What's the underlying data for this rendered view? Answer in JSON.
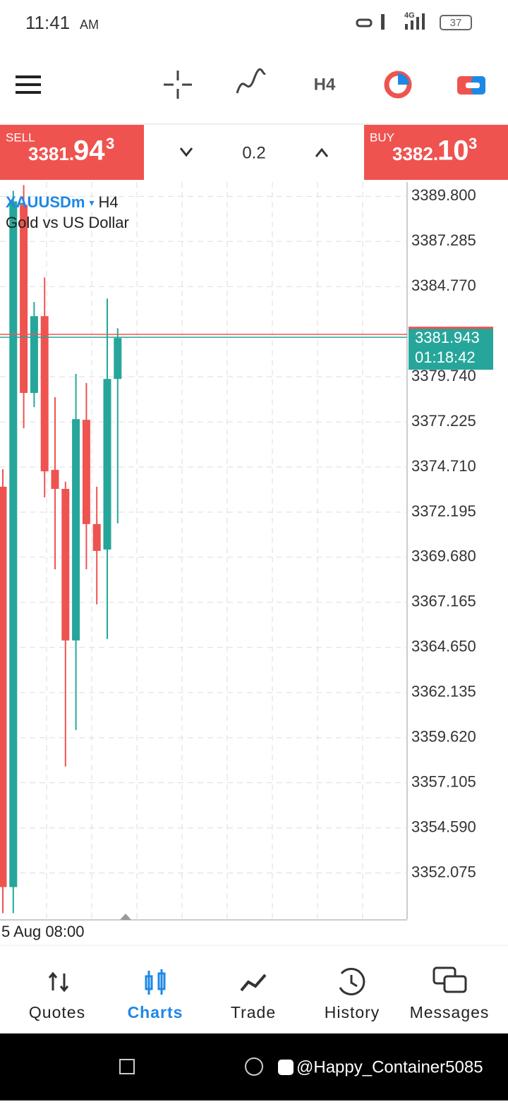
{
  "status_bar": {
    "time": "11:41",
    "ampm": "AM",
    "network": "4G",
    "battery": "37"
  },
  "toolbar": {
    "timeframe": "H4"
  },
  "trade_panel": {
    "sell_label": "SELL",
    "sell_price_main": "3381.",
    "sell_price_big": "94",
    "sell_price_sup": "3",
    "lot": "0.2",
    "buy_label": "BUY",
    "buy_price_main": "3382.",
    "buy_price_big": "10",
    "buy_price_sup": "3"
  },
  "chart_data": {
    "type": "candlestick",
    "symbol": "XAUUSDm",
    "timeframe": "H4",
    "description": "Gold vs US Dollar",
    "categories": [
      "5 Aug 08:00",
      null,
      null,
      null,
      null,
      null,
      null,
      null,
      null,
      null,
      null,
      null
    ],
    "open": [
      3373.61,
      3351.29,
      3389.33,
      3378.84,
      3383.12,
      3374.55,
      3373.49,
      3365.04,
      3377.34,
      3371.53,
      3370.11,
      3379.62
    ],
    "high": [
      3374.59,
      3390.11,
      3390.43,
      3383.91,
      3385.28,
      3378.6,
      3373.89,
      3379.9,
      3379.39,
      3373.61,
      3384.1,
      3382.45
    ],
    "low": [
      3349.84,
      3349.84,
      3376.87,
      3378.05,
      3373.02,
      3369.01,
      3358.01,
      3360.05,
      3369.01,
      3367.05,
      3365.12,
      3371.57
    ],
    "close": [
      3351.29,
      3389.52,
      3378.84,
      3383.12,
      3374.47,
      3373.49,
      3365.04,
      3377.38,
      3371.53,
      3370.03,
      3379.62,
      3381.9
    ],
    "up_color": "#26a69a",
    "down_color": "#ef5350",
    "bid": 3381.943,
    "ask": 3382.103,
    "countdown": "01:18:42",
    "ylim": [
      3349.5,
      3390.6
    ],
    "yticks": [
      {
        "value": 3389.8,
        "label": "3389.800"
      },
      3387.285,
      {
        "value": 3384.77,
        "label": "3384.770"
      },
      {
        "value": 3379.74,
        "label": "3379.740"
      },
      3377.225,
      {
        "value": 3374.71,
        "label": "3374.710"
      },
      3372.195,
      {
        "value": 3369.68,
        "label": "3369.680"
      },
      3367.165,
      {
        "value": 3364.65,
        "label": "3364.650"
      },
      3362.135,
      {
        "value": 3359.62,
        "label": "3359.620"
      },
      3357.105,
      {
        "value": 3354.59,
        "label": "3354.590"
      },
      3352.075
    ],
    "grid": true
  },
  "nav": {
    "items": [
      "Quotes",
      "Charts",
      "Trade",
      "History",
      "Messages"
    ],
    "active": "Charts"
  },
  "watermark": "@Happy_Container5085"
}
